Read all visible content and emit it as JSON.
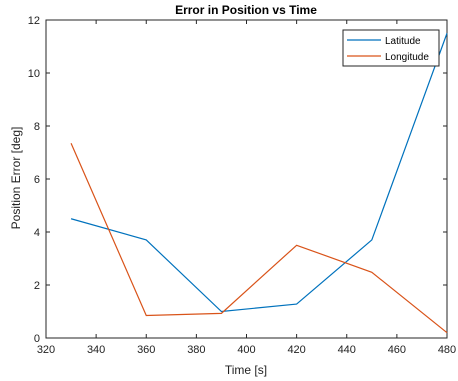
{
  "chart_data": {
    "type": "line",
    "title": "Error in Position vs Time",
    "xlabel": "Time [s]",
    "ylabel": "Position Error [deg]",
    "xlim": [
      320,
      480
    ],
    "ylim": [
      0,
      12
    ],
    "xticks": [
      320,
      340,
      360,
      380,
      400,
      420,
      440,
      460,
      480
    ],
    "yticks": [
      0,
      2,
      4,
      6,
      8,
      10,
      12
    ],
    "grid": false,
    "legend_position": "top-right",
    "series": [
      {
        "name": "Latitude",
        "color": "#0072BD",
        "x": [
          330,
          360,
          390,
          420,
          450,
          480
        ],
        "y": [
          4.5,
          3.7,
          1.0,
          1.28,
          3.7,
          11.5
        ]
      },
      {
        "name": "Longitude",
        "color": "#D95319",
        "x": [
          330,
          360,
          390,
          420,
          450,
          480
        ],
        "y": [
          7.35,
          0.85,
          0.93,
          3.5,
          2.48,
          0.2
        ]
      }
    ]
  }
}
